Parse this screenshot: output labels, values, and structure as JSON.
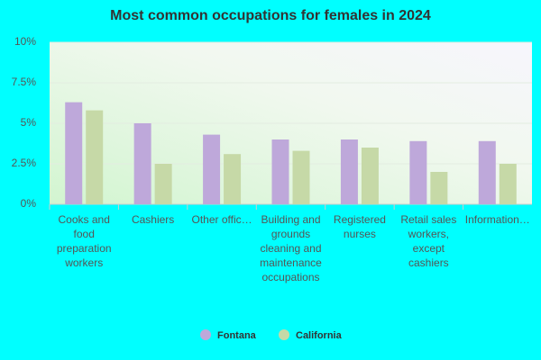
{
  "chart_data": {
    "type": "bar",
    "title": "Most common occupations for females in 2024",
    "categories": [
      "Cooks and food preparation workers",
      "Cashiers",
      "Other offic…",
      "Building and grounds cleaning and maintenance occupations",
      "Registered nurses",
      "Retail sales workers, except cashiers",
      "Information…"
    ],
    "series": [
      {
        "name": "Fontana",
        "color": "#bea8da",
        "values": [
          6.3,
          5.0,
          4.3,
          4.0,
          4.0,
          3.9,
          3.9
        ]
      },
      {
        "name": "California",
        "color": "#c6d9a7",
        "values": [
          5.8,
          2.5,
          3.1,
          3.3,
          3.5,
          2.0,
          2.5
        ]
      }
    ],
    "ylim": [
      0,
      10
    ],
    "yticks": [
      {
        "value": 0,
        "label": "0%"
      },
      {
        "value": 2.5,
        "label": "2.5%"
      },
      {
        "value": 5,
        "label": "5%"
      },
      {
        "value": 7.5,
        "label": "7.5%"
      },
      {
        "value": 10,
        "label": "10%"
      }
    ],
    "grid": true
  }
}
